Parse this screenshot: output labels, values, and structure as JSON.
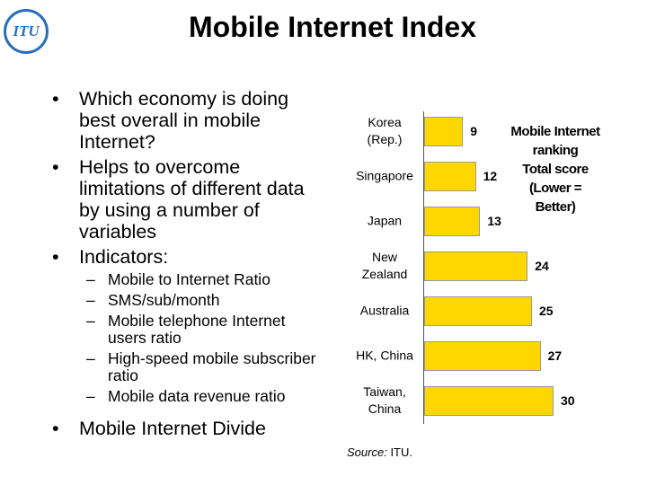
{
  "header": {
    "logo_text": "ITU",
    "title": "Mobile Internet Index"
  },
  "bullets": [
    {
      "text": "Which economy is doing best overall in mobile Internet?"
    },
    {
      "text": "Helps to overcome limitations of different data by using a number of variables"
    },
    {
      "text": "Indicators:",
      "sub": [
        "Mobile to Internet Ratio",
        "SMS/sub/month",
        "Mobile telephone Internet users ratio",
        "High-speed mobile subscriber ratio",
        "Mobile data revenue ratio"
      ]
    },
    {
      "text": "Mobile Internet Divide"
    }
  ],
  "chart_data": {
    "type": "hbar",
    "categories": [
      "Korea\n(Rep.)",
      "Singapore",
      "Japan",
      "New\nZealand",
      "Australia",
      "HK, China",
      "Taiwan,\nChina"
    ],
    "values": [
      9,
      12,
      13,
      24,
      25,
      27,
      30
    ],
    "color": "#ffd700",
    "annotation": "Mobile Internet\nranking\nTotal score\n(Lower =\nBetter)",
    "source_label": "Source:",
    "source_text": "ITU."
  }
}
